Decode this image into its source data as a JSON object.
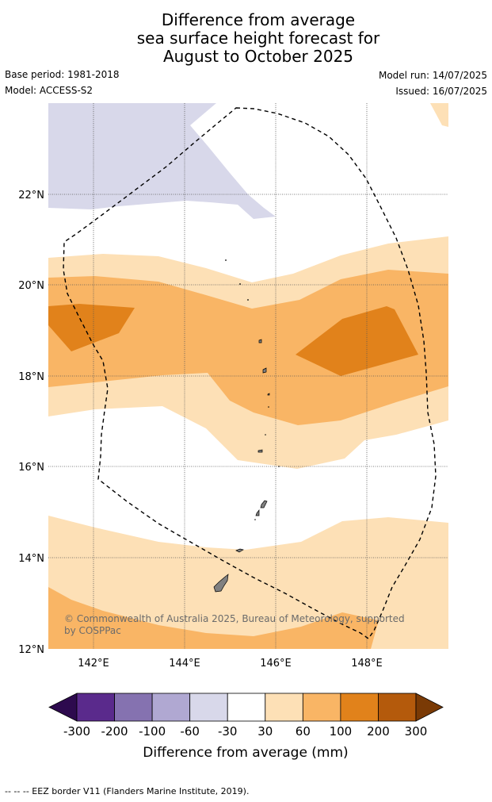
{
  "title": {
    "line1": "Difference from average",
    "line2": "sea surface height forecast for",
    "line3": "August to October 2025"
  },
  "meta": {
    "base_period": "Base period: 1981-2018",
    "model": "Model: ACCESS-S2",
    "model_run": "Model run: 14/07/2025",
    "issued": "Issued: 16/07/2025"
  },
  "map": {
    "lat_ticks": [
      "22°N",
      "20°N",
      "18°N",
      "16°N",
      "14°N",
      "12°N"
    ],
    "lon_ticks": [
      "142°E",
      "144°E",
      "146°E",
      "148°E"
    ],
    "copyright": "© Commonwealth of Australia 2025, Bureau of Meteorology, supported by COSPPac",
    "copyright_line1": "© Commonwealth of Australia 2025, Bureau of Meteorology, supported",
    "copyright_line2": "by COSPPac"
  },
  "colorbar": {
    "labels": [
      "-300",
      "-200",
      "-100",
      "-60",
      "-30",
      "30",
      "60",
      "100",
      "200",
      "300"
    ],
    "colors": [
      "#2d0a4e",
      "#5a2a8c",
      "#8572b0",
      "#b0a8d2",
      "#d8d8ea",
      "#ffffff",
      "#fde0b6",
      "#f9b565",
      "#e1821b",
      "#b45a0c",
      "#7a3a05"
    ],
    "label": "Difference from average (mm)"
  },
  "footnote": "--  --  -- EEZ border V11 (Flanders Marine Institute, 2019)."
}
